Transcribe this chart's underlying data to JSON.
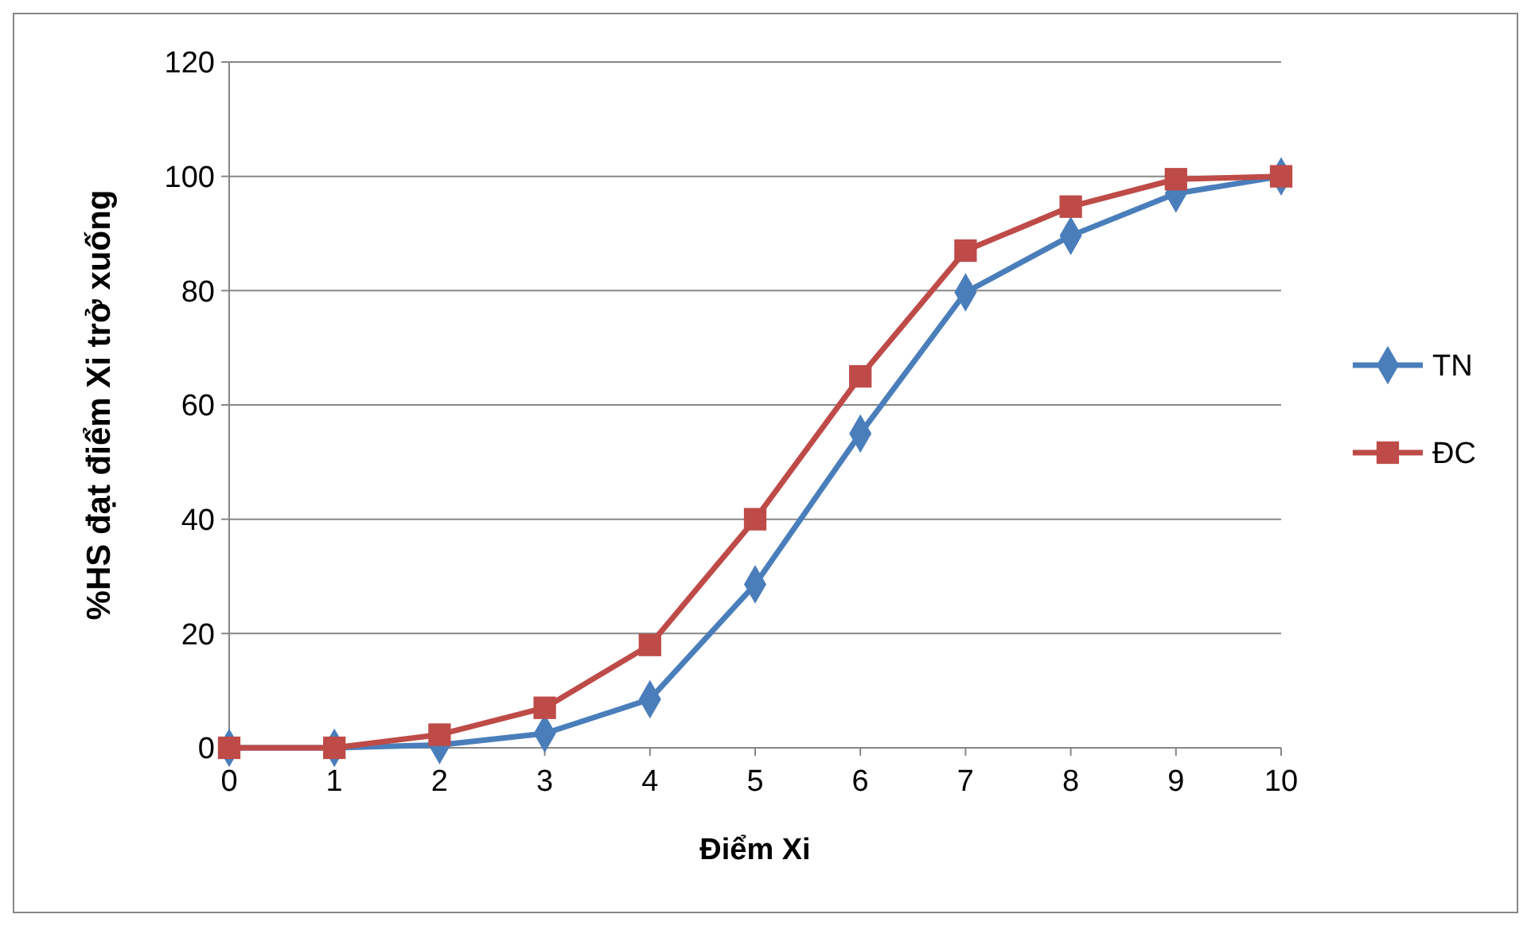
{
  "chart_data": {
    "type": "line",
    "xlabel": "Điểm Xi",
    "ylabel": "%HS đạt điểm Xi trở xuống",
    "x": [
      0,
      1,
      2,
      3,
      4,
      5,
      6,
      7,
      8,
      9,
      10
    ],
    "xlim": [
      0,
      10
    ],
    "xticks": [
      0,
      1,
      2,
      3,
      4,
      5,
      6,
      7,
      8,
      9,
      10
    ],
    "ylim": [
      0,
      120
    ],
    "yticks": [
      0,
      20,
      40,
      60,
      80,
      100,
      120
    ],
    "grid": "y",
    "legend": "right",
    "line_style": "solid",
    "series": [
      {
        "name": "TN",
        "color": "#4a7ebb",
        "marker": "diamond",
        "values": [
          0,
          0,
          0.5,
          2.5,
          8.5,
          28.6,
          55,
          79.7,
          89.6,
          97,
          100
        ]
      },
      {
        "name": "ĐC",
        "color": "#be4b48",
        "marker": "square",
        "values": [
          0,
          0,
          2.3,
          7,
          18,
          40,
          65,
          87,
          94.7,
          99.5,
          100
        ]
      }
    ]
  }
}
